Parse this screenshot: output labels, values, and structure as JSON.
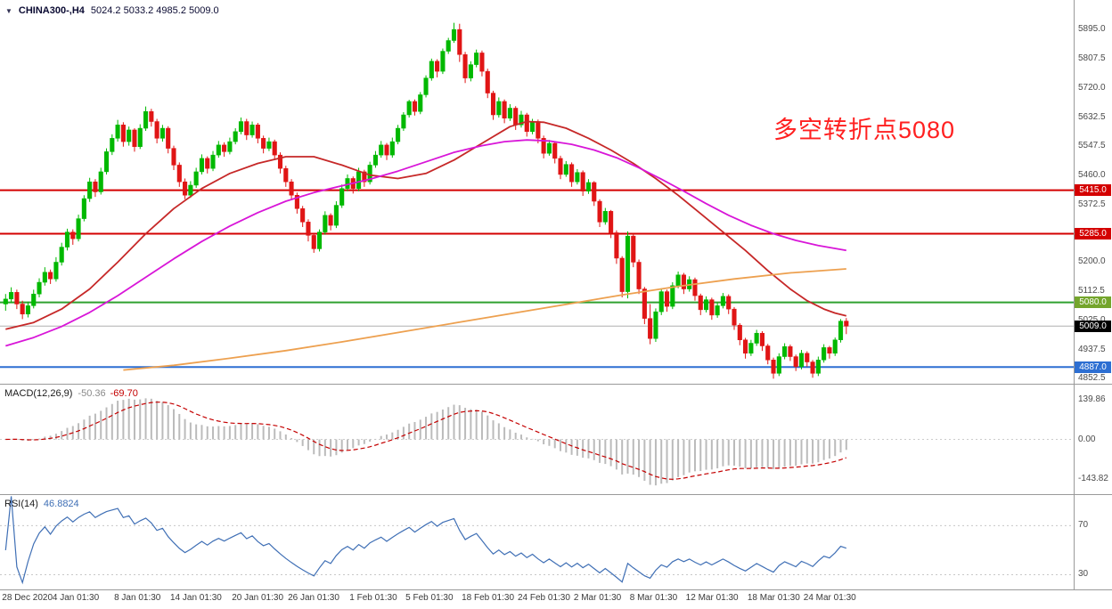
{
  "header": {
    "marker": "▼",
    "symbol": "CHINA300-,H4",
    "ohlc": "5024.2 5033.2 4985.2 5009.0"
  },
  "annotation": {
    "text": "多空转折点5080",
    "color": "#ff2020"
  },
  "indicators": {
    "macd": {
      "label": "MACD(12,26,9)",
      "value": "-50.36",
      "signal_value": "-69.70"
    },
    "rsi": {
      "label": "RSI(14)",
      "value": "46.8824"
    }
  },
  "chart_data": {
    "type": "candlestick",
    "symbol": "CHINA300-",
    "timeframe": "H4",
    "last_candle": {
      "open": 5024.2,
      "high": 5033.2,
      "low": 4985.2,
      "close": 5009.0
    },
    "y_range": [
      4837,
      5983
    ],
    "y_ticks": [
      5895.0,
      5807.5,
      5720.0,
      5632.5,
      5547.5,
      5460.0,
      5372.5,
      5285.0,
      5200.0,
      5112.5,
      5025.0,
      4937.5,
      4852.5
    ],
    "x_labels": [
      [
        "28 Dec 2020",
        0
      ],
      [
        "4 Jan 01:30",
        9
      ],
      [
        "8 Jan 01:30",
        20
      ],
      [
        "14 Jan 01:30",
        30
      ],
      [
        "20 Jan 01:30",
        41
      ],
      [
        "26 Jan 01:30",
        51
      ],
      [
        "1 Feb 01:30",
        62
      ],
      [
        "5 Feb 01:30",
        72
      ],
      [
        "18 Feb 01:30",
        82
      ],
      [
        "24 Feb 01:30",
        92
      ],
      [
        "2 Mar 01:30",
        102
      ],
      [
        "8 Mar 01:30",
        112
      ],
      [
        "12 Mar 01:30",
        122
      ],
      [
        "18 Mar 01:30",
        133
      ],
      [
        "24 Mar 01:30",
        143
      ]
    ],
    "candle_colors": {
      "up": "#00b800",
      "down": "#e01515"
    },
    "price_lines": [
      {
        "value": 5415.0,
        "color": "#d40000",
        "width": 2,
        "badge": "#d40000",
        "current": false
      },
      {
        "value": 5285.0,
        "color": "#d40000",
        "width": 2,
        "badge": "#d40000",
        "current": false
      },
      {
        "value": 5080.0,
        "color": "#2fa02f",
        "width": 2,
        "badge": "#74a52c",
        "current": false
      },
      {
        "value": 4887.0,
        "color": "#2d6fd2",
        "width": 2,
        "badge": "#2d6fd2",
        "current": false
      },
      {
        "value": 5009.0,
        "color": "#b0b0b0",
        "width": 1,
        "badge": "#000000",
        "current": true
      }
    ],
    "candles": [
      [
        5075,
        5105,
        5055,
        5090
      ],
      [
        5090,
        5125,
        5080,
        5110
      ],
      [
        5110,
        5118,
        5060,
        5075
      ],
      [
        5075,
        5085,
        5030,
        5045
      ],
      [
        5045,
        5082,
        5035,
        5070
      ],
      [
        5070,
        5118,
        5062,
        5105
      ],
      [
        5105,
        5152,
        5095,
        5140
      ],
      [
        5140,
        5185,
        5130,
        5170
      ],
      [
        5170,
        5178,
        5135,
        5150
      ],
      [
        5150,
        5215,
        5142,
        5200
      ],
      [
        5200,
        5258,
        5190,
        5245
      ],
      [
        5245,
        5300,
        5235,
        5290
      ],
      [
        5290,
        5298,
        5252,
        5270
      ],
      [
        5270,
        5342,
        5262,
        5330
      ],
      [
        5330,
        5400,
        5322,
        5390
      ],
      [
        5390,
        5452,
        5380,
        5440
      ],
      [
        5440,
        5448,
        5395,
        5410
      ],
      [
        5410,
        5482,
        5402,
        5470
      ],
      [
        5470,
        5540,
        5462,
        5530
      ],
      [
        5530,
        5582,
        5520,
        5570
      ],
      [
        5570,
        5625,
        5560,
        5610
      ],
      [
        5610,
        5618,
        5545,
        5560
      ],
      [
        5560,
        5605,
        5548,
        5595
      ],
      [
        5595,
        5600,
        5530,
        5545
      ],
      [
        5545,
        5612,
        5538,
        5600
      ],
      [
        5600,
        5665,
        5592,
        5650
      ],
      [
        5650,
        5658,
        5605,
        5620
      ],
      [
        5620,
        5628,
        5555,
        5570
      ],
      [
        5570,
        5610,
        5560,
        5600
      ],
      [
        5600,
        5606,
        5525,
        5540
      ],
      [
        5540,
        5548,
        5475,
        5490
      ],
      [
        5490,
        5498,
        5425,
        5440
      ],
      [
        5440,
        5450,
        5388,
        5400
      ],
      [
        5400,
        5442,
        5392,
        5430
      ],
      [
        5430,
        5482,
        5422,
        5470
      ],
      [
        5470,
        5522,
        5462,
        5510
      ],
      [
        5510,
        5516,
        5465,
        5480
      ],
      [
        5480,
        5532,
        5472,
        5520
      ],
      [
        5520,
        5562,
        5512,
        5550
      ],
      [
        5550,
        5558,
        5515,
        5530
      ],
      [
        5530,
        5572,
        5522,
        5560
      ],
      [
        5560,
        5600,
        5552,
        5590
      ],
      [
        5590,
        5632,
        5582,
        5620
      ],
      [
        5620,
        5628,
        5565,
        5580
      ],
      [
        5580,
        5620,
        5572,
        5610
      ],
      [
        5610,
        5616,
        5555,
        5570
      ],
      [
        5570,
        5578,
        5525,
        5540
      ],
      [
        5540,
        5572,
        5532,
        5560
      ],
      [
        5560,
        5566,
        5505,
        5520
      ],
      [
        5520,
        5528,
        5465,
        5480
      ],
      [
        5480,
        5488,
        5425,
        5440
      ],
      [
        5440,
        5448,
        5385,
        5400
      ],
      [
        5400,
        5408,
        5345,
        5360
      ],
      [
        5360,
        5368,
        5305,
        5320
      ],
      [
        5320,
        5328,
        5262,
        5280
      ],
      [
        5280,
        5288,
        5228,
        5240
      ],
      [
        5240,
        5298,
        5232,
        5290
      ],
      [
        5290,
        5352,
        5282,
        5340
      ],
      [
        5340,
        5346,
        5295,
        5310
      ],
      [
        5310,
        5382,
        5302,
        5370
      ],
      [
        5370,
        5432,
        5362,
        5420
      ],
      [
        5420,
        5462,
        5412,
        5450
      ],
      [
        5450,
        5456,
        5405,
        5420
      ],
      [
        5420,
        5482,
        5412,
        5470
      ],
      [
        5470,
        5476,
        5425,
        5440
      ],
      [
        5440,
        5500,
        5432,
        5490
      ],
      [
        5490,
        5532,
        5482,
        5520
      ],
      [
        5520,
        5562,
        5512,
        5550
      ],
      [
        5550,
        5556,
        5505,
        5520
      ],
      [
        5520,
        5572,
        5512,
        5560
      ],
      [
        5560,
        5610,
        5552,
        5600
      ],
      [
        5600,
        5648,
        5592,
        5640
      ],
      [
        5640,
        5685,
        5632,
        5680
      ],
      [
        5680,
        5686,
        5638,
        5650
      ],
      [
        5650,
        5708,
        5642,
        5700
      ],
      [
        5700,
        5758,
        5692,
        5750
      ],
      [
        5750,
        5808,
        5742,
        5800
      ],
      [
        5800,
        5806,
        5752,
        5770
      ],
      [
        5770,
        5838,
        5762,
        5830
      ],
      [
        5830,
        5870,
        5822,
        5862
      ],
      [
        5862,
        5915,
        5855,
        5895
      ],
      [
        5895,
        5912,
        5798,
        5820
      ],
      [
        5820,
        5828,
        5735,
        5750
      ],
      [
        5750,
        5800,
        5740,
        5790
      ],
      [
        5790,
        5835,
        5782,
        5825
      ],
      [
        5825,
        5832,
        5755,
        5770
      ],
      [
        5770,
        5778,
        5690,
        5705
      ],
      [
        5705,
        5712,
        5625,
        5640
      ],
      [
        5640,
        5692,
        5632,
        5680
      ],
      [
        5680,
        5686,
        5615,
        5630
      ],
      [
        5630,
        5672,
        5622,
        5660
      ],
      [
        5660,
        5666,
        5595,
        5610
      ],
      [
        5610,
        5652,
        5602,
        5640
      ],
      [
        5640,
        5646,
        5575,
        5590
      ],
      [
        5590,
        5628,
        5582,
        5620
      ],
      [
        5620,
        5626,
        5555,
        5570
      ],
      [
        5570,
        5578,
        5510,
        5525
      ],
      [
        5525,
        5565,
        5518,
        5555
      ],
      [
        5555,
        5560,
        5495,
        5510
      ],
      [
        5510,
        5518,
        5448,
        5462
      ],
      [
        5462,
        5502,
        5455,
        5492
      ],
      [
        5492,
        5498,
        5425,
        5440
      ],
      [
        5440,
        5478,
        5432,
        5468
      ],
      [
        5468,
        5474,
        5398,
        5412
      ],
      [
        5412,
        5448,
        5404,
        5438
      ],
      [
        5438,
        5442,
        5368,
        5382
      ],
      [
        5382,
        5388,
        5305,
        5320
      ],
      [
        5320,
        5362,
        5312,
        5352
      ],
      [
        5352,
        5356,
        5272,
        5288
      ],
      [
        5288,
        5295,
        5195,
        5212
      ],
      [
        5212,
        5218,
        5095,
        5112
      ],
      [
        5112,
        5292,
        5092,
        5278
      ],
      [
        5278,
        5285,
        5185,
        5200
      ],
      [
        5200,
        5208,
        5105,
        5120
      ],
      [
        5120,
        5126,
        5015,
        5032
      ],
      [
        5032,
        5075,
        4955,
        4972
      ],
      [
        4972,
        5062,
        4962,
        5052
      ],
      [
        5052,
        5122,
        5042,
        5112
      ],
      [
        5112,
        5118,
        5052,
        5068
      ],
      [
        5068,
        5140,
        5060,
        5130
      ],
      [
        5130,
        5172,
        5122,
        5162
      ],
      [
        5162,
        5168,
        5105,
        5120
      ],
      [
        5120,
        5158,
        5112,
        5148
      ],
      [
        5148,
        5154,
        5085,
        5100
      ],
      [
        5100,
        5106,
        5042,
        5058
      ],
      [
        5058,
        5098,
        5050,
        5088
      ],
      [
        5088,
        5094,
        5028,
        5042
      ],
      [
        5042,
        5080,
        5034,
        5070
      ],
      [
        5070,
        5108,
        5062,
        5098
      ],
      [
        5098,
        5104,
        5045,
        5060
      ],
      [
        5060,
        5066,
        4998,
        5012
      ],
      [
        5012,
        5018,
        4952,
        4968
      ],
      [
        4968,
        4974,
        4912,
        4928
      ],
      [
        4928,
        4968,
        4920,
        4958
      ],
      [
        4958,
        4998,
        4950,
        4988
      ],
      [
        4988,
        4994,
        4935,
        4950
      ],
      [
        4950,
        4956,
        4895,
        4908
      ],
      [
        4908,
        4915,
        4852,
        4868
      ],
      [
        4868,
        4928,
        4860,
        4918
      ],
      [
        4918,
        4958,
        4910,
        4948
      ],
      [
        4948,
        4954,
        4905,
        4918
      ],
      [
        4918,
        4924,
        4875,
        4888
      ],
      [
        4888,
        4938,
        4880,
        4928
      ],
      [
        4928,
        4934,
        4888,
        4902
      ],
      [
        4902,
        4908,
        4855,
        4868
      ],
      [
        4868,
        4918,
        4860,
        4908
      ],
      [
        4908,
        4955,
        4900,
        4945
      ],
      [
        4945,
        4950,
        4912,
        4928
      ],
      [
        4928,
        4975,
        4920,
        4968
      ],
      [
        4968,
        5030,
        4960,
        5024
      ],
      [
        5024.2,
        5033.2,
        4985.2,
        5009.0
      ]
    ],
    "moving_averages": [
      {
        "name": "ma-fast-red",
        "color": "#c62828",
        "points": [
          [
            0,
            5000
          ],
          [
            5,
            5020
          ],
          [
            10,
            5060
          ],
          [
            15,
            5120
          ],
          [
            20,
            5200
          ],
          [
            25,
            5285
          ],
          [
            30,
            5360
          ],
          [
            35,
            5420
          ],
          [
            40,
            5465
          ],
          [
            45,
            5495
          ],
          [
            50,
            5515
          ],
          [
            55,
            5515
          ],
          [
            60,
            5490
          ],
          [
            65,
            5460
          ],
          [
            70,
            5450
          ],
          [
            75,
            5465
          ],
          [
            80,
            5505
          ],
          [
            85,
            5555
          ],
          [
            90,
            5605
          ],
          [
            93,
            5620
          ],
          [
            96,
            5618
          ],
          [
            100,
            5600
          ],
          [
            104,
            5570
          ],
          [
            108,
            5535
          ],
          [
            112,
            5495
          ],
          [
            116,
            5450
          ],
          [
            120,
            5400
          ],
          [
            124,
            5345
          ],
          [
            128,
            5290
          ],
          [
            132,
            5235
          ],
          [
            136,
            5175
          ],
          [
            140,
            5120
          ],
          [
            143,
            5085
          ],
          [
            146,
            5060
          ],
          [
            148,
            5048
          ],
          [
            150,
            5040
          ]
        ]
      },
      {
        "name": "ma-medium-magenta",
        "color": "#d816d8",
        "points": [
          [
            0,
            4950
          ],
          [
            5,
            4975
          ],
          [
            10,
            5008
          ],
          [
            15,
            5050
          ],
          [
            20,
            5100
          ],
          [
            25,
            5155
          ],
          [
            30,
            5210
          ],
          [
            35,
            5262
          ],
          [
            40,
            5308
          ],
          [
            45,
            5348
          ],
          [
            50,
            5382
          ],
          [
            55,
            5408
          ],
          [
            60,
            5428
          ],
          [
            65,
            5448
          ],
          [
            70,
            5472
          ],
          [
            75,
            5500
          ],
          [
            80,
            5528
          ],
          [
            85,
            5548
          ],
          [
            89,
            5560
          ],
          [
            93,
            5565
          ],
          [
            97,
            5562
          ],
          [
            101,
            5552
          ],
          [
            105,
            5535
          ],
          [
            109,
            5512
          ],
          [
            113,
            5482
          ],
          [
            117,
            5448
          ],
          [
            121,
            5412
          ],
          [
            125,
            5375
          ],
          [
            129,
            5340
          ],
          [
            133,
            5310
          ],
          [
            137,
            5285
          ],
          [
            141,
            5265
          ],
          [
            145,
            5250
          ],
          [
            150,
            5235
          ]
        ]
      },
      {
        "name": "ma-slow-orange",
        "color": "#eda04f",
        "points": [
          [
            21,
            4878
          ],
          [
            30,
            4892
          ],
          [
            40,
            4913
          ],
          [
            50,
            4936
          ],
          [
            60,
            4962
          ],
          [
            70,
            4990
          ],
          [
            80,
            5018
          ],
          [
            90,
            5046
          ],
          [
            100,
            5074
          ],
          [
            110,
            5102
          ],
          [
            120,
            5128
          ],
          [
            130,
            5150
          ],
          [
            140,
            5168
          ],
          [
            150,
            5180
          ]
        ]
      }
    ],
    "macd": {
      "params": [
        12,
        26,
        9
      ],
      "value": -50.36,
      "signal": -69.7,
      "level_labels": [
        "139.86",
        "0.00",
        "-143.82"
      ],
      "hist_color": "#bbbbbb",
      "signal_color": "#c40000"
    },
    "rsi": {
      "period": 14,
      "value": 46.8824,
      "levels": [
        70,
        30
      ],
      "scale": [
        18,
        95
      ],
      "color": "#3f6fb5"
    }
  }
}
